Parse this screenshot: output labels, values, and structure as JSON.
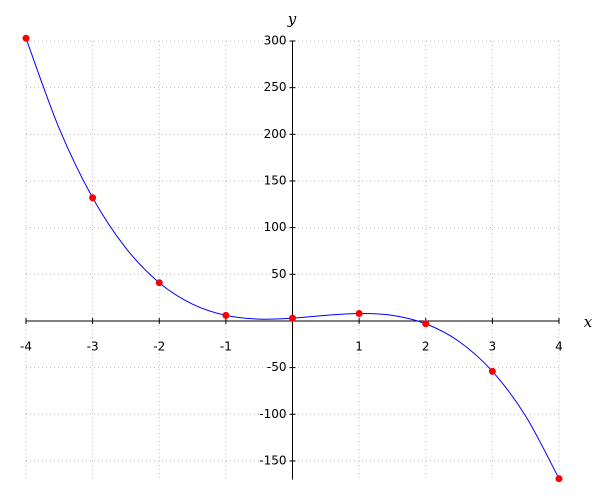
{
  "chart_data": {
    "type": "line",
    "x_label": "x",
    "y_label": "y",
    "xlim": [
      -4,
      4
    ],
    "ylim": [
      -170,
      300
    ],
    "xticks": [
      -4,
      -3,
      -2,
      -1,
      1,
      2,
      3,
      4
    ],
    "yticks": [
      -150,
      -100,
      -50,
      50,
      100,
      150,
      200,
      250,
      300
    ],
    "grid": true,
    "series": [
      {
        "color": "#0000ff",
        "marker": false,
        "line": true,
        "x": [
          -4,
          -3.5,
          -3,
          -2.5,
          -2,
          -1.5,
          -1,
          -0.5,
          0,
          0.5,
          1,
          1.5,
          2,
          2.5,
          3,
          3.5,
          4
        ],
        "values": [
          303,
          206,
          132,
          78,
          41,
          18,
          6,
          2,
          3,
          6,
          8,
          6,
          -3,
          -22,
          -54,
          -102,
          -169
        ]
      },
      {
        "color": "#ff0000",
        "marker": true,
        "line": false,
        "x": [
          -4,
          -3,
          -2,
          -1,
          0,
          1,
          2,
          3,
          4
        ],
        "values": [
          303,
          132,
          41,
          6,
          3,
          8,
          -3,
          -54,
          -169
        ]
      }
    ]
  }
}
